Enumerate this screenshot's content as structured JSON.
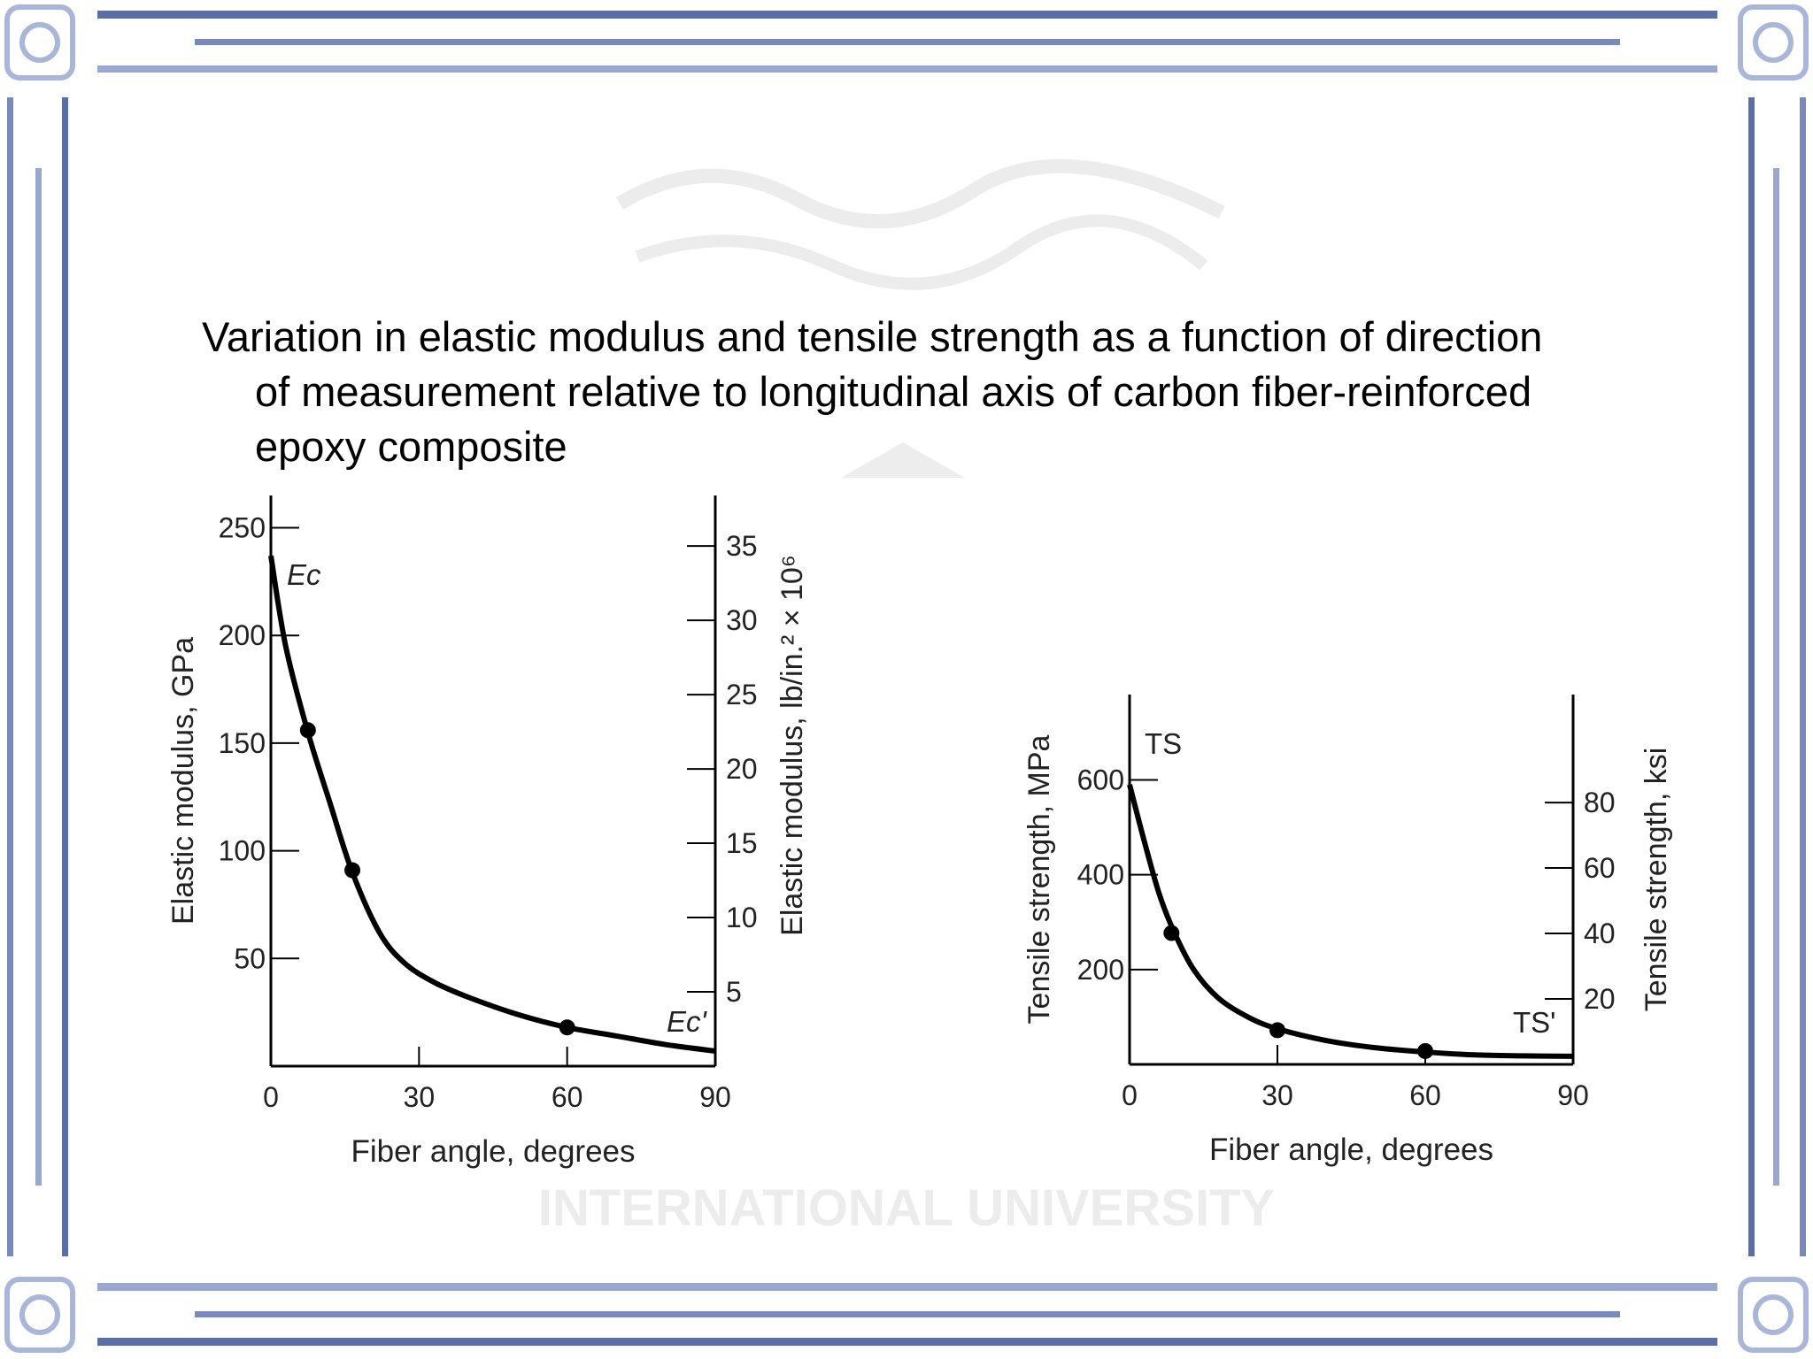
{
  "slide": {
    "caption_lines": [
      "Variation in elastic modulus and tensile strength as a function of direction",
      "of measurement relative to longitudinal axis of carbon fiber-reinforced",
      "epoxy composite"
    ],
    "watermark_text": "INTERNATIONAL UNIVERSITY",
    "frame_color": "#5b6fa6",
    "frame_light_color": "#a9b6d8"
  },
  "chart_data": [
    {
      "type": "line",
      "xlabel": "Fiber angle, degrees",
      "ylabel": "Elastic modulus, GPa",
      "ylabel2": "Elastic modulus, lb/in.² × 10⁶",
      "xlim": [
        0,
        90
      ],
      "ylim": [
        0,
        265
      ],
      "y2lim": [
        0,
        38.4
      ],
      "x_ticks": [
        0,
        30,
        60,
        90
      ],
      "y_ticks": [
        50,
        100,
        150,
        200,
        250
      ],
      "y2_ticks": [
        5,
        10,
        15,
        20,
        25,
        30,
        35
      ],
      "curve_label_start": "Ec",
      "curve_label_end": "Ec'",
      "curve": {
        "x": [
          0,
          3,
          7.5,
          12,
          16.5,
          22,
          27,
          33,
          40,
          50,
          60,
          70,
          80,
          90
        ],
        "y": [
          237,
          195,
          155,
          122,
          90,
          62,
          48,
          39,
          32,
          24,
          18,
          14,
          10,
          7
        ]
      },
      "points": {
        "x": [
          7.5,
          16.5,
          60
        ],
        "y": [
          156,
          91,
          18
        ]
      },
      "grid": false
    },
    {
      "type": "line",
      "xlabel": "Fiber angle, degrees",
      "ylabel": "Tensile strength, MPa",
      "ylabel2": "Tensile strength, ksi",
      "xlim": [
        0,
        90
      ],
      "ylim": [
        0,
        780
      ],
      "y2lim": [
        0,
        113
      ],
      "x_ticks": [
        0,
        30,
        60,
        90
      ],
      "y_ticks": [
        200,
        400,
        600
      ],
      "y2_ticks": [
        20,
        40,
        60,
        80
      ],
      "curve_label_start": "TS",
      "curve_label_end": "TS'",
      "curve": {
        "x": [
          0,
          3,
          6,
          9,
          13,
          18,
          24,
          30,
          40,
          50,
          60,
          70,
          80,
          90
        ],
        "y": [
          590,
          470,
          360,
          280,
          200,
          140,
          100,
          75,
          50,
          35,
          26,
          20,
          18,
          17
        ]
      },
      "points": {
        "x": [
          8.5,
          30,
          60
        ],
        "y": [
          277,
          72,
          28
        ]
      },
      "grid": false
    }
  ]
}
